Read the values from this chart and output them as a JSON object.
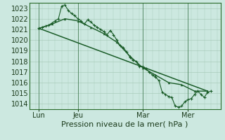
{
  "bg_color": "#cce8e0",
  "grid_color": "#aaccbb",
  "line_color": "#1a5c28",
  "title": "Pression niveau de la mer( hPa )",
  "ylim": [
    1013.5,
    1023.5
  ],
  "yticks": [
    1014,
    1015,
    1016,
    1017,
    1018,
    1019,
    1020,
    1021,
    1022,
    1023
  ],
  "xtick_labels": [
    "Lun",
    "Jeu",
    "Mar",
    "Mer"
  ],
  "xtick_positions": [
    2,
    14,
    34,
    48
  ],
  "xlim": [
    -1,
    58
  ],
  "line1_x": [
    2,
    3,
    4,
    5,
    6,
    7,
    8,
    9,
    10,
    11,
    12,
    13,
    14,
    15,
    16,
    17,
    18,
    19,
    20,
    21,
    22,
    23,
    24,
    25,
    26,
    27,
    28,
    29,
    30,
    31,
    32,
    33,
    34,
    35,
    36,
    37,
    38,
    39,
    40,
    41,
    42,
    43,
    44,
    45,
    46,
    47,
    48,
    49,
    50,
    51,
    52,
    53,
    54,
    55
  ],
  "line1_y": [
    1021.1,
    1021.2,
    1021.3,
    1021.4,
    1021.6,
    1021.8,
    1022.0,
    1023.2,
    1023.3,
    1022.8,
    1022.5,
    1022.3,
    1022.0,
    1021.8,
    1021.5,
    1021.9,
    1021.7,
    1021.4,
    1021.2,
    1021.0,
    1020.8,
    1020.5,
    1020.9,
    1020.5,
    1020.0,
    1019.5,
    1019.3,
    1018.9,
    1018.4,
    1018.1,
    1018.0,
    1017.5,
    1017.5,
    1017.3,
    1017.0,
    1016.7,
    1016.5,
    1016.2,
    1015.1,
    1014.9,
    1014.7,
    1014.6,
    1013.8,
    1013.7,
    1013.8,
    1014.2,
    1014.4,
    1014.5,
    1014.9,
    1015.2,
    1014.9,
    1014.6,
    1015.1,
    1015.2
  ],
  "line2_x": [
    2,
    6,
    10,
    14,
    18,
    22,
    26,
    30,
    34,
    38,
    42,
    46,
    50,
    54
  ],
  "line2_y": [
    1021.1,
    1021.5,
    1022.0,
    1021.8,
    1021.2,
    1020.6,
    1019.8,
    1018.5,
    1017.4,
    1016.7,
    1016.0,
    1015.8,
    1015.2,
    1015.2
  ],
  "line3_x": [
    2,
    54
  ],
  "line3_y": [
    1021.1,
    1015.2
  ],
  "title_fontsize": 8,
  "tick_fontsize": 7
}
